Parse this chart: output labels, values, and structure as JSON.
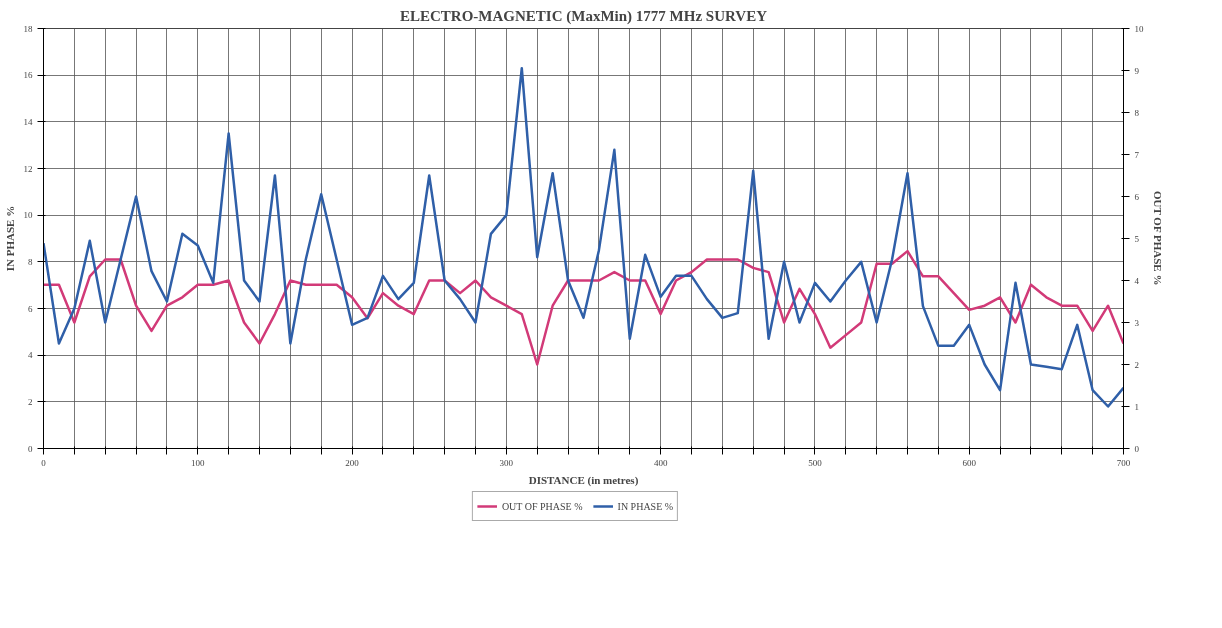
{
  "chart_data": {
    "type": "line",
    "title": "ELECTRO-MAGNETIC (MaxMin) 1777 MHz SURVEY",
    "xlabel": "DISTANCE (in metres)",
    "ylabel": "IN PHASE %",
    "y2label": "OUT OF PHASE %",
    "x": [
      0,
      10,
      20,
      30,
      40,
      50,
      60,
      70,
      80,
      90,
      100,
      110,
      120,
      130,
      140,
      150,
      160,
      170,
      180,
      190,
      200,
      210,
      220,
      230,
      240,
      250,
      260,
      270,
      280,
      290,
      300,
      310,
      320,
      330,
      340,
      350,
      360,
      370,
      380,
      390,
      400,
      410,
      420,
      430,
      440,
      450,
      460,
      470,
      480,
      490,
      500,
      510,
      520,
      530,
      540,
      550,
      560,
      570,
      580,
      590,
      600,
      610,
      620,
      630,
      640,
      650,
      660,
      670,
      680,
      690,
      700
    ],
    "series": [
      {
        "name": "OUT OF PHASE %",
        "color": "#d23a78",
        "axis": "y2",
        "values": [
          3.9,
          3.9,
          3.0,
          4.1,
          4.5,
          4.5,
          3.4,
          2.8,
          3.4,
          3.6,
          3.9,
          3.9,
          4.0,
          3.0,
          2.5,
          3.2,
          4.0,
          3.9,
          3.9,
          3.9,
          3.6,
          3.1,
          3.7,
          3.4,
          3.2,
          4.0,
          4.0,
          3.7,
          4.0,
          3.6,
          3.4,
          3.2,
          2.0,
          3.4,
          4.0,
          4.0,
          4.0,
          4.2,
          4.0,
          4.0,
          3.2,
          4.0,
          4.2,
          4.5,
          4.5,
          4.5,
          4.3,
          4.2,
          3.0,
          3.8,
          3.2,
          2.4,
          2.7,
          3.0,
          4.4,
          4.4,
          4.7,
          4.1,
          4.1,
          3.7,
          3.3,
          3.4,
          3.6,
          3.0,
          3.9,
          3.6,
          3.4,
          3.4,
          2.8,
          3.4,
          2.5
        ]
      },
      {
        "name": "IN PHASE %",
        "color": "#2f5fa8",
        "values": [
          8.8,
          4.5,
          6.0,
          8.9,
          5.4,
          8.1,
          10.8,
          7.6,
          6.3,
          9.2,
          8.7,
          7.1,
          13.5,
          7.2,
          6.3,
          11.7,
          4.5,
          8.1,
          10.9,
          8.1,
          5.3,
          5.6,
          7.4,
          6.4,
          7.1,
          11.7,
          7.2,
          6.4,
          5.4,
          9.2,
          10.0,
          16.3,
          8.2,
          11.8,
          7.2,
          5.6,
          8.5,
          12.8,
          4.7,
          8.3,
          6.5,
          7.4,
          7.4,
          6.4,
          5.6,
          5.8,
          11.9,
          4.7,
          8.0,
          5.4,
          7.1,
          6.3,
          7.2,
          8.0,
          5.4,
          8.1,
          11.8,
          6.1,
          4.4,
          4.4,
          5.3,
          3.6,
          2.5,
          7.1,
          3.6,
          3.5,
          3.4,
          5.3,
          2.5,
          1.8,
          2.6
        ]
      }
    ],
    "xlim": [
      0,
      700
    ],
    "xticks": [
      0,
      {
        "value": 20,
        "label": null
      },
      {
        "value": 40,
        "label": null
      },
      {
        "value": 60,
        "label": null
      },
      {
        "value": 80,
        "label": null
      },
      100,
      {
        "value": 120,
        "label": null
      },
      {
        "value": 140,
        "label": null
      },
      {
        "value": 160,
        "label": null
      },
      {
        "value": 180,
        "label": null
      },
      200,
      {
        "value": 220,
        "label": null
      },
      {
        "value": 240,
        "label": null
      },
      {
        "value": 260,
        "label": null
      },
      {
        "value": 280,
        "label": null
      },
      300,
      {
        "value": 320,
        "label": null
      },
      {
        "value": 340,
        "label": null
      },
      {
        "value": 360,
        "label": null
      },
      {
        "value": 380,
        "label": null
      },
      400,
      {
        "value": 420,
        "label": null
      },
      {
        "value": 440,
        "label": null
      },
      {
        "value": 460,
        "label": null
      },
      {
        "value": 480,
        "label": null
      },
      500,
      {
        "value": 520,
        "label": null
      },
      {
        "value": 540,
        "label": null
      },
      {
        "value": 560,
        "label": null
      },
      {
        "value": 580,
        "label": null
      },
      600,
      {
        "value": 620,
        "label": null
      },
      {
        "value": 640,
        "label": null
      },
      {
        "value": 660,
        "label": null
      },
      {
        "value": 680,
        "label": null
      },
      700
    ],
    "ylim": [
      0,
      18
    ],
    "yticks": [
      0,
      2,
      4,
      6,
      8,
      10,
      12,
      14,
      16,
      18
    ],
    "y2lim": [
      0,
      10
    ],
    "y2ticks": [
      0,
      1,
      2,
      3,
      4,
      5,
      6,
      7,
      8,
      9,
      10
    ],
    "grid": true,
    "legend": "bottom",
    "marker": "none",
    "line_style": "solid"
  }
}
